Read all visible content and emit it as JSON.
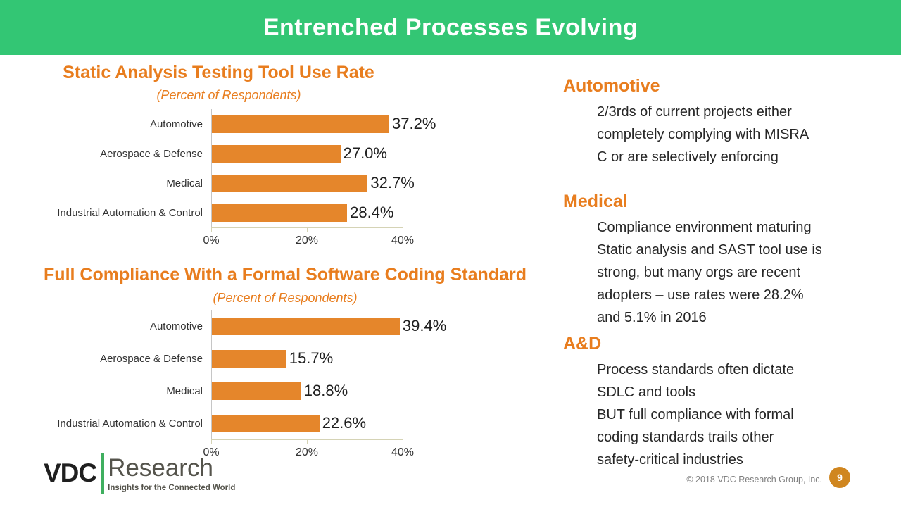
{
  "slide": {
    "title": "Entrenched Processes Evolving",
    "header_color": "#33c674",
    "accent_orange": "#e87d1e",
    "bar_color": "#e5862b"
  },
  "chart_data": [
    {
      "type": "bar",
      "orientation": "horizontal",
      "title": "Static Analysis Testing Tool Use Rate",
      "subtitle": "(Percent of Respondents)",
      "categories": [
        "Automotive",
        "Aerospace & Defense",
        "Medical",
        "Industrial Automation & Control"
      ],
      "values": [
        37.2,
        27.0,
        32.7,
        28.4
      ],
      "value_labels": [
        "37.2%",
        "27.0%",
        "32.7%",
        "28.4%"
      ],
      "xlim": [
        0,
        40
      ],
      "x_ticks": [
        {
          "value": 0,
          "label": "0%"
        },
        {
          "value": 20,
          "label": "20%"
        },
        {
          "value": 40,
          "label": "40%"
        }
      ],
      "grid": false,
      "legend": "none"
    },
    {
      "type": "bar",
      "orientation": "horizontal",
      "title": "Full Compliance With a Formal Software Coding Standard",
      "subtitle": "(Percent of Respondents)",
      "categories": [
        "Automotive",
        "Aerospace & Defense",
        "Medical",
        "Industrial Automation & Control"
      ],
      "values": [
        39.4,
        15.7,
        18.8,
        22.6
      ],
      "value_labels": [
        "39.4%",
        "15.7%",
        "18.8%",
        "22.6%"
      ],
      "xlim": [
        0,
        40
      ],
      "x_ticks": [
        {
          "value": 0,
          "label": "0%"
        },
        {
          "value": 20,
          "label": "20%"
        },
        {
          "value": 40,
          "label": "40%"
        }
      ],
      "grid": false,
      "legend": "none"
    }
  ],
  "notes": [
    {
      "heading": "Automotive",
      "lines": [
        "2/3rds of current projects either",
        "completely complying with MISRA",
        "C or are selectively enforcing"
      ]
    },
    {
      "heading": "Medical",
      "lines": [
        "Compliance environment maturing",
        "Static analysis and SAST tool use is",
        "strong, but many orgs are recent",
        "adopters – use rates were 28.2%",
        "and 5.1% in 2016"
      ]
    },
    {
      "heading": "A&D",
      "lines": [
        "Process standards often dictate",
        "SDLC and tools",
        "BUT full compliance with formal",
        "coding standards trails other",
        "safety-critical industries"
      ]
    }
  ],
  "logo": {
    "name": "VDC",
    "suffix": "Research",
    "tagline": "Insights for the Connected World"
  },
  "footer": {
    "copyright": "© 2018 VDC Research Group, Inc.",
    "page_number": "9"
  }
}
